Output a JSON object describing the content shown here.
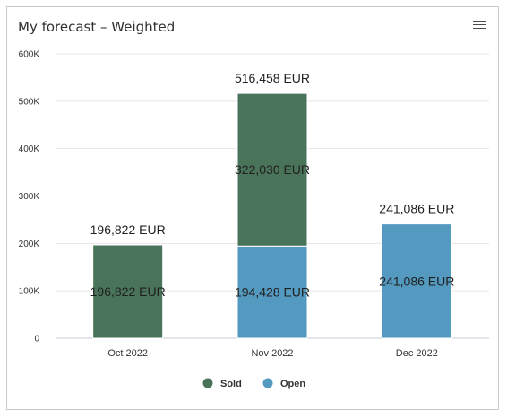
{
  "header": {
    "title": "My forecast – Weighted",
    "menu_icon": "hamburger-menu-icon"
  },
  "chart_data": {
    "type": "bar",
    "stacked": true,
    "categories": [
      "Oct 2022",
      "Nov 2022",
      "Dec 2022"
    ],
    "series": [
      {
        "name": "Sold",
        "color": "#4a7459",
        "values": [
          196822,
          322030,
          0
        ]
      },
      {
        "name": "Open",
        "color": "#5499bf",
        "values": [
          0,
          194428,
          241086
        ]
      }
    ],
    "totals": [
      196822,
      516458,
      241086
    ],
    "data_labels": [
      {
        "category": 0,
        "series": 0,
        "text": "196,822 EUR"
      },
      {
        "category": 1,
        "series": 0,
        "text": "322,030 EUR"
      },
      {
        "category": 1,
        "series": 1,
        "text": "194,428 EUR"
      },
      {
        "category": 2,
        "series": 1,
        "text": "241,086 EUR"
      }
    ],
    "total_labels": [
      "196,822 EUR",
      "516,458 EUR",
      "241,086 EUR"
    ],
    "y_ticks": [
      0,
      100000,
      200000,
      300000,
      400000,
      500000,
      600000
    ],
    "y_tick_labels": [
      "0",
      "100K",
      "200K",
      "300K",
      "400K",
      "500K",
      "600K"
    ],
    "ylim": [
      0,
      600000
    ],
    "grid": true,
    "legend_position": "bottom"
  }
}
